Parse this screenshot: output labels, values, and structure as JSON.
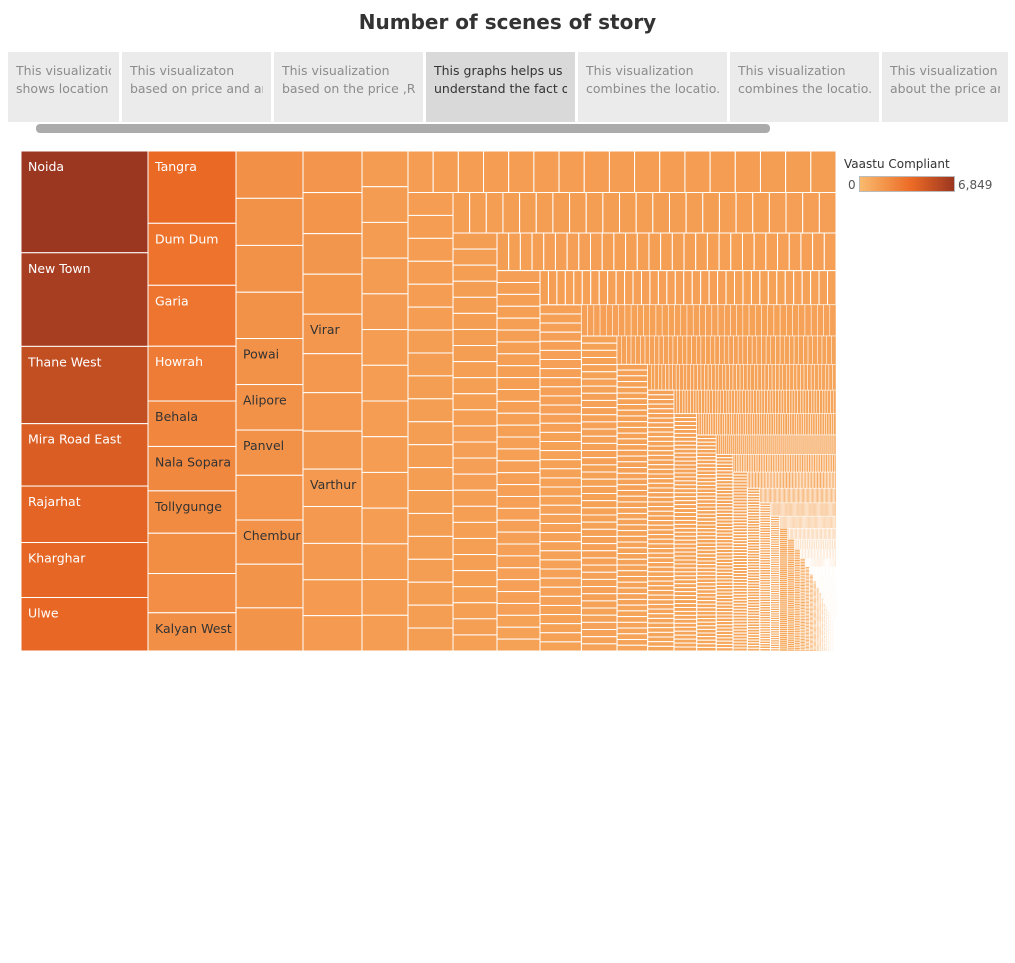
{
  "title": "Number of scenes of story",
  "story_points": [
    {
      "line1": "This visualization",
      "line2": "shows location b..",
      "active": false
    },
    {
      "line1": "This visualizaton",
      "line2": "based on price and ar..",
      "active": false
    },
    {
      "line1": "This visualization",
      "line2": "based on the price ,R..",
      "active": false
    },
    {
      "line1": "This graphs helps us to",
      "line2": "understand the fact o..",
      "active": true
    },
    {
      "line1": "This visualization",
      "line2": "combines the locatio..",
      "active": false
    },
    {
      "line1": "This visualization",
      "line2": "combines the locatio..",
      "active": false
    },
    {
      "line1": "This visualization",
      "line2": "about the price and..",
      "active": false
    }
  ],
  "legend": {
    "title": "Vaastu Compliant",
    "min_label": "0",
    "max_label": "6,849",
    "color_low": "#f9bb6e",
    "color_mid": "#ec6a25",
    "color_high": "#9b3620"
  },
  "chart_data": {
    "type": "treemap",
    "measure": "Vaastu Compliant",
    "range": [
      0,
      6849
    ],
    "columns": [
      {
        "items": [
          {
            "label": "Noida",
            "value": 6849
          },
          {
            "label": "New Town",
            "value": 6300
          },
          {
            "label": "Thane West",
            "value": 5200
          },
          {
            "label": "Mira Road East",
            "value": 4200
          },
          {
            "label": "Rajarhat",
            "value": 3800
          },
          {
            "label": "Kharghar",
            "value": 3700
          },
          {
            "label": "Ulwe",
            "value": 3600
          }
        ]
      },
      {
        "items": [
          {
            "label": "Tangra",
            "value": 3500
          },
          {
            "label": "Dum Dum",
            "value": 3000
          },
          {
            "label": "Garia",
            "value": 2950
          },
          {
            "label": "Howrah",
            "value": 2650
          },
          {
            "label": "Behala",
            "value": 2200
          },
          {
            "label": "Nala Sopara",
            "value": 2150
          },
          {
            "label": "Tollygunge",
            "value": 2050
          },
          {
            "label": "",
            "value": 1950
          },
          {
            "label": "",
            "value": 1900
          },
          {
            "label": "Kalyan West",
            "value": 1850
          }
        ]
      },
      {
        "items": [
          {
            "label": "",
            "value": 1800
          },
          {
            "label": "",
            "value": 1790
          },
          {
            "label": "",
            "value": 1780
          },
          {
            "label": "",
            "value": 1760
          },
          {
            "label": "Powai",
            "value": 1750
          },
          {
            "label": "Alipore",
            "value": 1730
          },
          {
            "label": "Panvel",
            "value": 1720
          },
          {
            "label": "",
            "value": 1700
          },
          {
            "label": "Chembur",
            "value": 1680
          },
          {
            "label": "",
            "value": 1660
          },
          {
            "label": "",
            "value": 1640
          }
        ]
      },
      {
        "items": [
          {
            "label": "",
            "value": 1600
          },
          {
            "label": "",
            "value": 1580
          },
          {
            "label": "",
            "value": 1560
          },
          {
            "label": "",
            "value": 1540
          },
          {
            "label": "Virar",
            "value": 1520
          },
          {
            "label": "",
            "value": 1500
          },
          {
            "label": "",
            "value": 1480
          },
          {
            "label": "",
            "value": 1460
          },
          {
            "label": "Varthur",
            "value": 1440
          },
          {
            "label": "",
            "value": 1420
          },
          {
            "label": "",
            "value": 1400
          },
          {
            "label": "",
            "value": 1380
          },
          {
            "label": "",
            "value": 1360
          }
        ]
      }
    ],
    "remaining_locations": {
      "approx_count": 1500,
      "value_max": 1300,
      "value_min": 0
    }
  }
}
